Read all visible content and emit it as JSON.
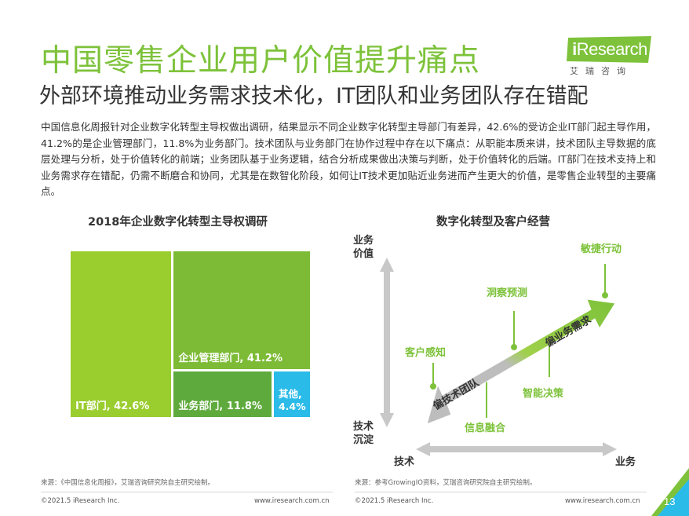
{
  "header": {
    "title": "中国零售企业用户价值提升痛点",
    "subtitle": "外部环境推动业务需求技术化，IT团队和业务团队存在错配"
  },
  "logo": {
    "brand_i": "i",
    "brand_rest": "Research",
    "cn": "艾瑞咨询"
  },
  "intro": "中国信息化周报针对企业数字化转型主导权做出调研，结果显示不同企业数字化转型主导部门有差异，42.6%的受访企业IT部门起主导作用，41.2%的是企业管理部门，11.8%为业务部门。技术团队与业务部门在协作过程中存在以下痛点：从职能本质来讲，技术团队主导数据的底层处理与分析，处于价值转化的前端；业务团队基于业务逻辑，结合分析成果做出决策与判断，处于价值转化的后端。IT部门在技术支持上和业务需求存在错配，仍需不断磨合和协同，尤其是在数智化阶段，如何让IT技术更加贴近业务进而产生更大的价值，是零售企业转型的主要痛点。",
  "chart_data": [
    {
      "type": "treemap",
      "title": "2018年企业数字化转型主导权调研",
      "items": [
        {
          "name": "IT部门",
          "value": 42.6,
          "label": "IT部门, 42.6%",
          "color": "#9acd2e"
        },
        {
          "name": "企业管理部门",
          "value": 41.2,
          "label": "企业管理部门, 41.2%",
          "color": "#7dbb36"
        },
        {
          "name": "业务部门",
          "value": 11.8,
          "label": "业务部门, 11.8%",
          "color": "#5eaa3c"
        },
        {
          "name": "其他",
          "value": 4.4,
          "label_line1": "其他,",
          "label_line2": "4.4%",
          "color": "#2bbbe8"
        }
      ],
      "source": "来源：《中国信息化周报》，艾瑞咨询研究院自主研究绘制。"
    },
    {
      "type": "diagram",
      "title": "数字化转型及客户经营",
      "y_axis": {
        "top_line1": "业务",
        "top_line2": "价值",
        "bottom_line1": "技术",
        "bottom_line2": "沉淀"
      },
      "x_axis": {
        "left": "技术",
        "right": "业务"
      },
      "arrow_up_label": "偏业务需求",
      "arrow_down_label": "偏技术团队",
      "points": [
        {
          "label": "客户感知"
        },
        {
          "label": "信息融合"
        },
        {
          "label": "洞察预测"
        },
        {
          "label": "智能决策"
        },
        {
          "label": "敏捷行动"
        }
      ],
      "source": "来源：参考GrowingIO资料，艾瑞咨询研究院自主研究绘制。"
    }
  ],
  "footer": {
    "copyright": "©2021.5 iResearch Inc.",
    "site": "www.iresearch.com.cn",
    "page": "13"
  }
}
